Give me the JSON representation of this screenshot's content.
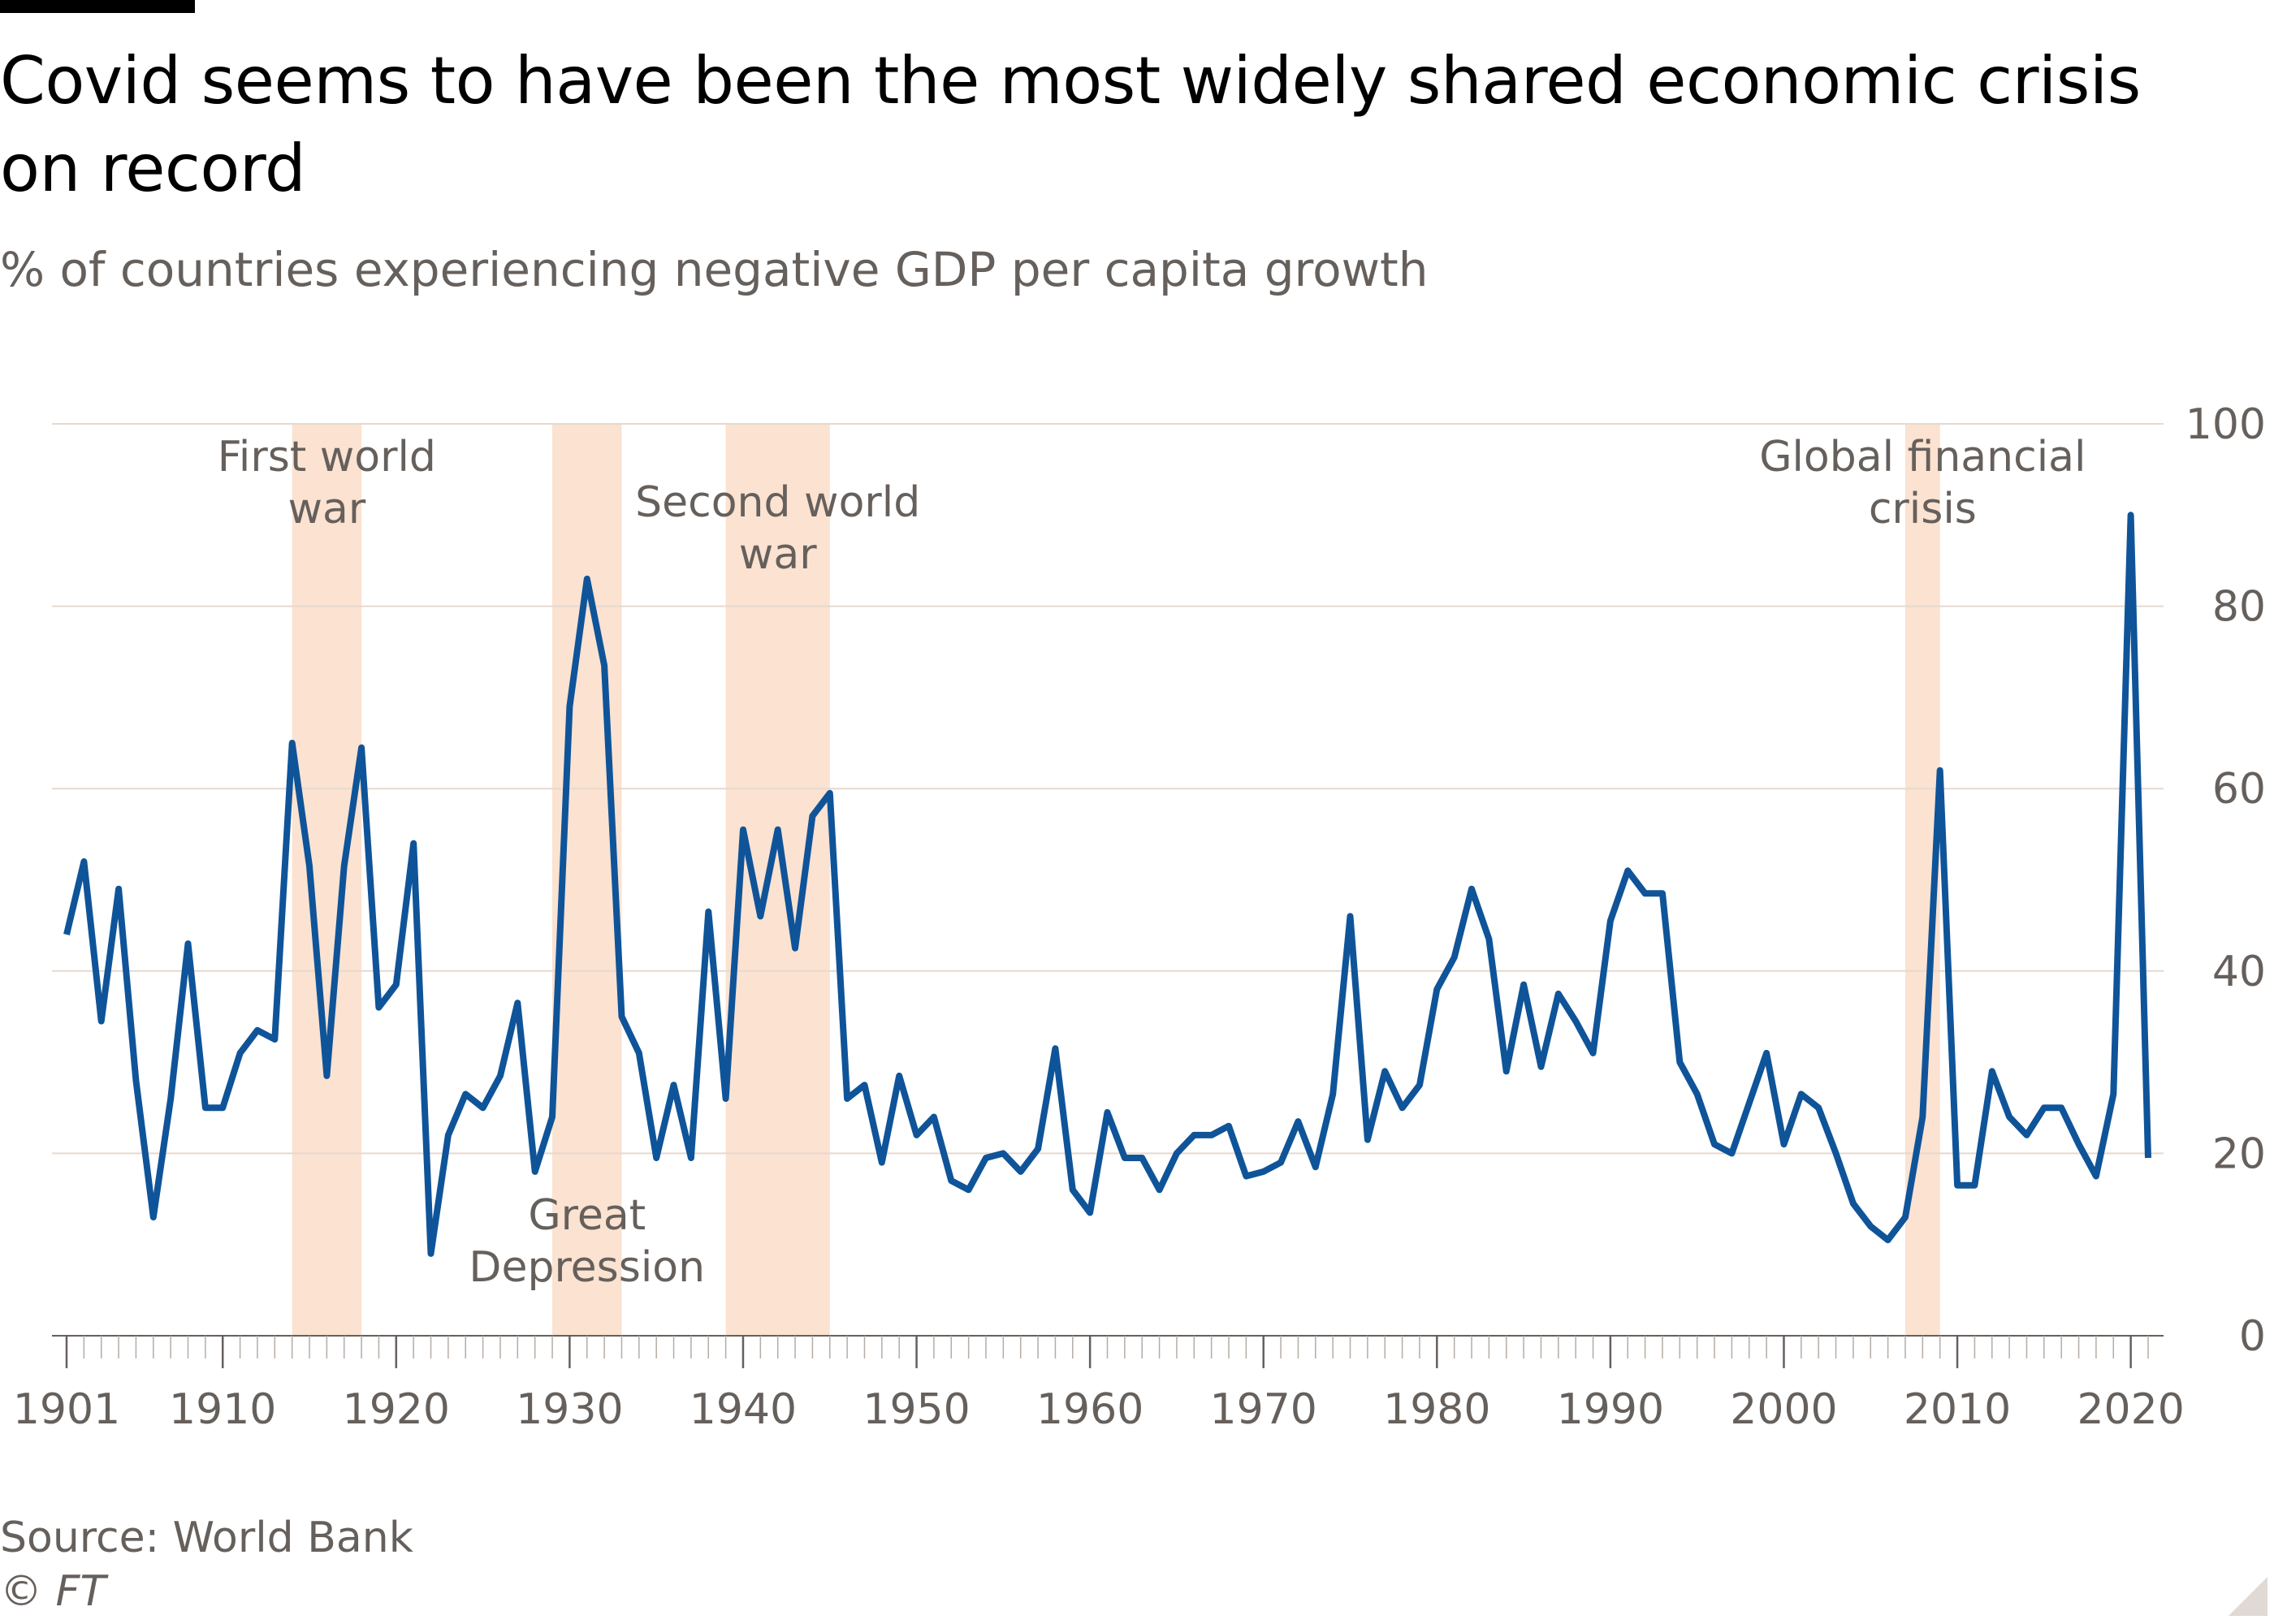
{
  "header": {
    "title": "Covid seems to have been the most widely shared economic crisis on record",
    "subtitle": "% of countries experiencing negative GDP per capita growth"
  },
  "footer": {
    "source": "Source: World Bank",
    "copyright": "© FT"
  },
  "colors": {
    "line": "#0f5499",
    "shade": "#fbe2d1",
    "grid": "#e6d9ce",
    "text": "#66605c",
    "axis": "#66605c"
  },
  "chart_data": {
    "type": "line",
    "title": "Covid seems to have been the most widely shared economic crisis on record",
    "subtitle": "% of countries experiencing negative GDP per capita growth",
    "xlabel": "",
    "ylabel": "",
    "xlim": [
      1901,
      2021
    ],
    "ylim": [
      0,
      100
    ],
    "grid": true,
    "y_axis_side": "right",
    "yticks": [
      0,
      20,
      40,
      60,
      80,
      100
    ],
    "ytick_labels": [
      "0",
      "20",
      "40",
      "60",
      "80",
      "100"
    ],
    "xticks": [
      1901,
      1910,
      1920,
      1930,
      1940,
      1950,
      1960,
      1970,
      1980,
      1990,
      2000,
      2010,
      2020
    ],
    "xtick_labels": [
      "1901",
      "1910",
      "1920",
      "1930",
      "1940",
      "1950",
      "1960",
      "1970",
      "1980",
      "1990",
      "2000",
      "2010",
      "2020"
    ],
    "shaded_periods": [
      {
        "label": "First world war",
        "label_lines": [
          "First world",
          "war"
        ],
        "start": 1914,
        "end": 1918,
        "label_position": "top"
      },
      {
        "label": "Great Depression",
        "label_lines": [
          "Great",
          "Depression"
        ],
        "start": 1929,
        "end": 1933,
        "label_position": "bottom"
      },
      {
        "label": "Second world war",
        "label_lines": [
          "Second world",
          "war"
        ],
        "start": 1939,
        "end": 1945,
        "label_position": "top"
      },
      {
        "label": "Global financial crisis",
        "label_lines": [
          "Global financial",
          "crisis"
        ],
        "start": 2007,
        "end": 2009,
        "label_position": "top"
      }
    ],
    "series": [
      {
        "name": "% of countries experiencing negative GDP per capita growth",
        "x": [
          1901,
          1902,
          1903,
          1904,
          1905,
          1906,
          1907,
          1908,
          1909,
          1910,
          1911,
          1912,
          1913,
          1914,
          1915,
          1916,
          1917,
          1918,
          1919,
          1920,
          1921,
          1922,
          1923,
          1924,
          1925,
          1926,
          1927,
          1928,
          1929,
          1930,
          1931,
          1932,
          1933,
          1934,
          1935,
          1936,
          1937,
          1938,
          1939,
          1940,
          1941,
          1942,
          1943,
          1944,
          1945,
          1946,
          1947,
          1948,
          1949,
          1950,
          1951,
          1952,
          1953,
          1954,
          1955,
          1956,
          1957,
          1958,
          1959,
          1960,
          1961,
          1962,
          1963,
          1964,
          1965,
          1966,
          1967,
          1968,
          1969,
          1970,
          1971,
          1972,
          1973,
          1974,
          1975,
          1976,
          1977,
          1978,
          1979,
          1980,
          1981,
          1982,
          1983,
          1984,
          1985,
          1986,
          1987,
          1988,
          1989,
          1990,
          1991,
          1992,
          1993,
          1994,
          1995,
          1996,
          1997,
          1998,
          1999,
          2000,
          2001,
          2002,
          2003,
          2004,
          2005,
          2006,
          2007,
          2008,
          2009,
          2010,
          2011,
          2012,
          2013,
          2014,
          2015,
          2016,
          2017,
          2018,
          2019,
          2020,
          2021
        ],
        "values": [
          44,
          52,
          34.5,
          49,
          28,
          13,
          26,
          43,
          25,
          25,
          31,
          33.5,
          32.5,
          65,
          51.5,
          28.5,
          51.5,
          64.5,
          36,
          38.5,
          54,
          9,
          22,
          26.5,
          25,
          28.5,
          36.5,
          18,
          24,
          69,
          83,
          73.5,
          35,
          31,
          19.5,
          27.5,
          19.5,
          46.5,
          26,
          55.5,
          46,
          55.5,
          42.5,
          57,
          59.5,
          26,
          27.5,
          19,
          28.5,
          22,
          24,
          17,
          16,
          19.5,
          20,
          18,
          20.5,
          31.5,
          16,
          13.5,
          24.5,
          19.5,
          19.5,
          16,
          20,
          22,
          22,
          23,
          17.5,
          18,
          19,
          23.5,
          18.5,
          26.5,
          46,
          21.5,
          29,
          25,
          27.5,
          38,
          41.5,
          49,
          43.5,
          29,
          38.5,
          29.5,
          37.5,
          34.5,
          31,
          45.5,
          51,
          48.5,
          48.5,
          30,
          26.5,
          21,
          20,
          25.5,
          31,
          21,
          26.5,
          25,
          20,
          14.5,
          12,
          10.5,
          13,
          24,
          62,
          16.5,
          16.5,
          29,
          24,
          22,
          25,
          25,
          21,
          17.5,
          26.5,
          90,
          19.5
        ]
      }
    ]
  }
}
